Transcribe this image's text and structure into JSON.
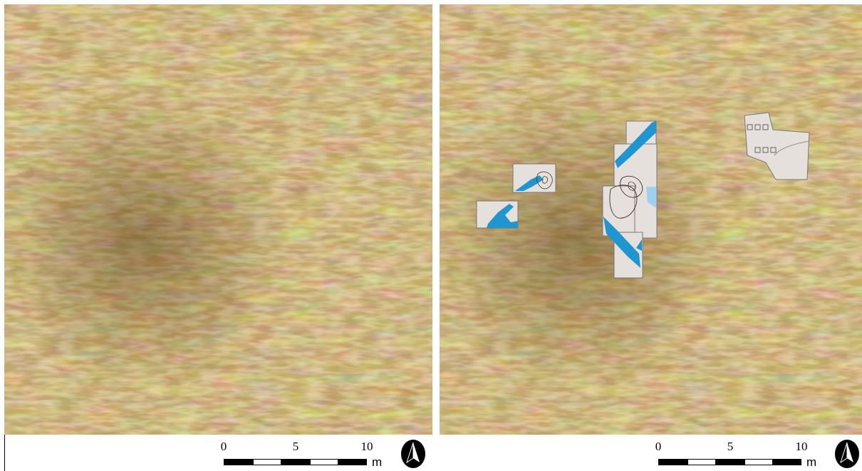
{
  "panels": [
    {
      "id": "left",
      "features": "none"
    },
    {
      "id": "right",
      "features": "excavation-trench-plans"
    }
  ],
  "scale_bar": {
    "ticks": [
      "0",
      "5",
      "10"
    ],
    "unit": "m",
    "segments": [
      "black",
      "white",
      "black",
      "white",
      "black"
    ]
  },
  "colors": {
    "raster_dark": "#6b4a1e",
    "raster_mid": "#b89a5c",
    "raster_light": "#efe2a8",
    "trench_fill": "#e6e0dc",
    "feature_blue": "#1f96d0",
    "feature_lightblue": "#9fd0ef",
    "outline": "#555555"
  },
  "icons": {
    "north_arrow": "north-arrow-icon"
  }
}
